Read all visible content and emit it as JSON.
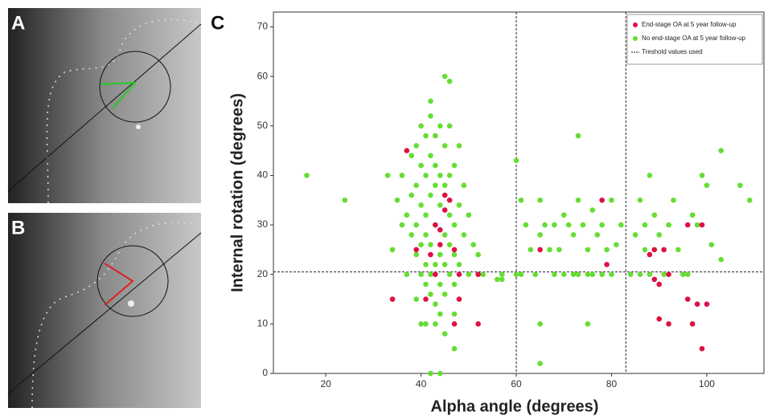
{
  "panels": [
    "A",
    "B",
    "C"
  ],
  "chart_data": {
    "type": "scatter",
    "x_label": "Alpha angle (degrees)",
    "y_label": "Internal rotation (degrees)",
    "xlim": [
      9,
      112
    ],
    "ylim": [
      0,
      73
    ],
    "xticks": [
      20,
      40,
      60,
      80,
      100
    ],
    "yticks": [
      0,
      10,
      20,
      30,
      40,
      50,
      60,
      70
    ],
    "thresholds": {
      "x": [
        60,
        83
      ],
      "y": [
        20.5
      ]
    },
    "threshold_label": "Treshold values used",
    "series": [
      {
        "name": "No end-stage OA at 5 year follow-up",
        "color": "#66dd33",
        "x": [
          16,
          24,
          33,
          34,
          35,
          36,
          36,
          37,
          37,
          38,
          38,
          38,
          39,
          39,
          39,
          39,
          40,
          40,
          40,
          40,
          40,
          41,
          41,
          41,
          41,
          41,
          41,
          42,
          42,
          42,
          42,
          42,
          42,
          43,
          43,
          43,
          43,
          43,
          43,
          44,
          44,
          44,
          44,
          44,
          45,
          45,
          45,
          45,
          45,
          46,
          46,
          46,
          46,
          46,
          47,
          47,
          47,
          47,
          48,
          48,
          48,
          49,
          49,
          50,
          50,
          51,
          52,
          53,
          42,
          45,
          46,
          43,
          40,
          44,
          47,
          41,
          39,
          45,
          56,
          57,
          60,
          61,
          61,
          62,
          63,
          64,
          65,
          65,
          66,
          67,
          68,
          68,
          69,
          70,
          70,
          71,
          72,
          72,
          73,
          73,
          74,
          75,
          75,
          76,
          76,
          77,
          78,
          78,
          79,
          80,
          80,
          81,
          82,
          84,
          85,
          86,
          86,
          87,
          87,
          88,
          88,
          89,
          90,
          91,
          92,
          93,
          94,
          95,
          96,
          97,
          98,
          99,
          100,
          101,
          103,
          103,
          107,
          109,
          65,
          73,
          75,
          57,
          60,
          47,
          42,
          44,
          65
        ],
        "values": [
          40,
          35,
          40,
          25,
          35,
          30,
          40,
          20,
          32,
          28,
          36,
          44,
          24,
          30,
          38,
          46,
          20,
          26,
          34,
          42,
          50,
          18,
          22,
          28,
          32,
          40,
          48,
          16,
          20,
          26,
          36,
          44,
          52,
          14,
          22,
          30,
          38,
          42,
          48,
          18,
          24,
          34,
          40,
          50,
          16,
          22,
          28,
          38,
          46,
          20,
          26,
          32,
          40,
          50,
          18,
          24,
          30,
          42,
          22,
          34,
          46,
          28,
          38,
          20,
          32,
          26,
          24,
          20,
          55,
          60,
          59,
          10,
          10,
          12,
          12,
          10,
          15,
          8,
          19,
          19,
          43,
          35,
          20,
          30,
          25,
          20,
          35,
          28,
          30,
          25,
          30,
          20,
          25,
          32,
          20,
          30,
          28,
          20,
          35,
          20,
          30,
          25,
          20,
          33,
          20,
          28,
          30,
          20,
          25,
          35,
          20,
          26,
          30,
          20,
          28,
          35,
          20,
          25,
          30,
          40,
          20,
          32,
          28,
          20,
          30,
          35,
          25,
          20,
          20,
          32,
          30,
          40,
          38,
          26,
          45,
          23,
          38,
          35,
          2,
          48,
          10,
          20,
          20,
          5,
          0,
          0,
          10
        ]
      },
      {
        "name": "End-stage OA at 5 year follow-up",
        "color": "#dd1144",
        "x": [
          37,
          34,
          39,
          41,
          42,
          43,
          43,
          44,
          44,
          45,
          45,
          46,
          47,
          48,
          48,
          47,
          52,
          52,
          65,
          78,
          79,
          88,
          89,
          91,
          89,
          90,
          92,
          96,
          99,
          96,
          90,
          92,
          97,
          98,
          100,
          99
        ],
        "values": [
          45,
          15,
          25,
          15,
          24,
          20,
          30,
          26,
          29,
          33,
          36,
          35,
          25,
          20,
          15,
          10,
          10,
          20,
          25,
          35,
          22,
          24,
          25,
          25,
          19,
          18,
          20,
          30,
          30,
          15,
          11,
          10,
          10,
          14,
          14,
          5
        ]
      }
    ]
  }
}
